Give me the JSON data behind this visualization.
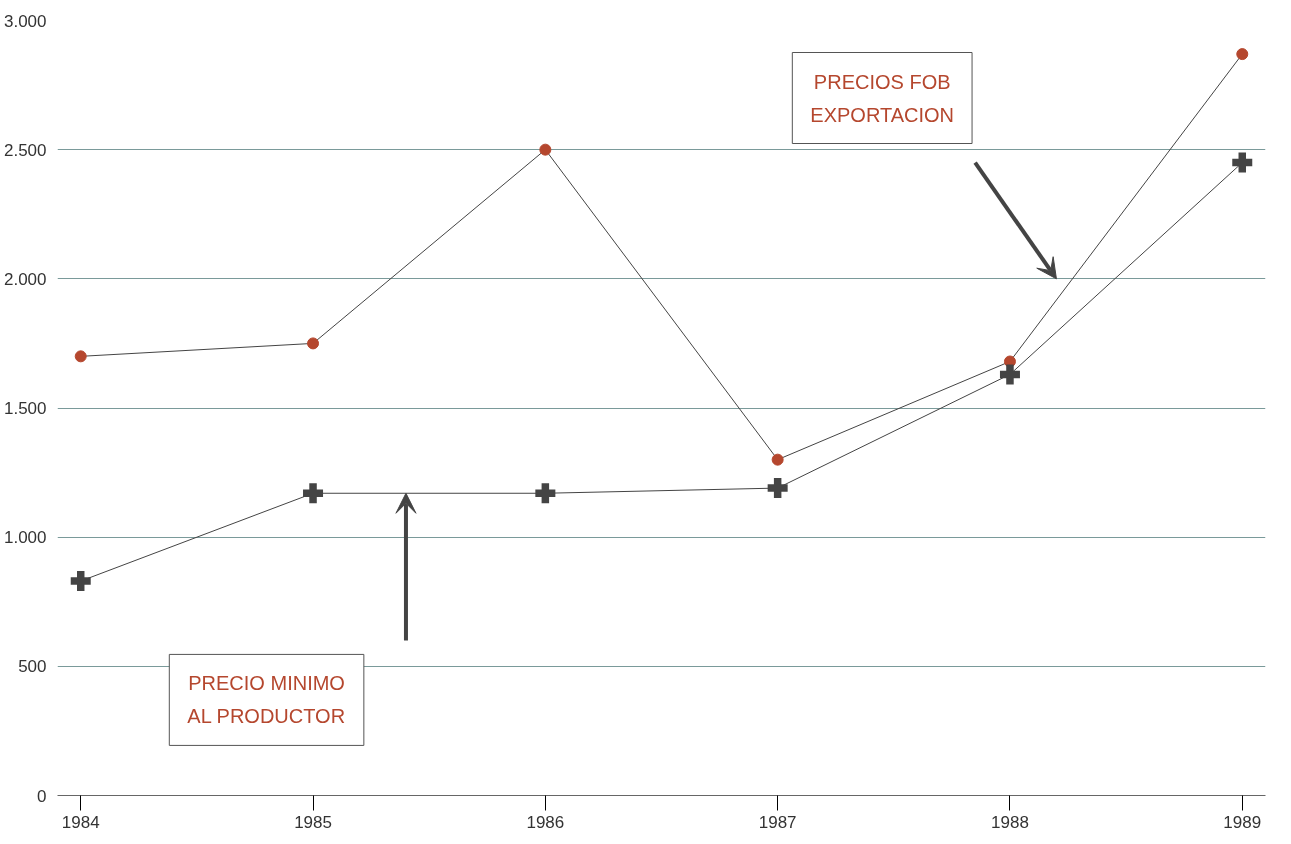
{
  "chart_data": {
    "type": "line",
    "x": [
      1984,
      1985,
      1986,
      1987,
      1988,
      1989
    ],
    "series": [
      {
        "color": "#b5472e",
        "marker": "circle",
        "values": [
          1700,
          1750,
          2500,
          1300,
          1680,
          2870
        ]
      },
      {
        "color": "#444444",
        "marker": "cross",
        "values": [
          830,
          1170,
          1170,
          1190,
          1630,
          2450
        ]
      }
    ],
    "xlim": [
      1983.9,
      1989.1
    ],
    "xticks": [
      1984,
      1985,
      1986,
      1987,
      1988,
      1989
    ],
    "ylim": [
      0,
      3000
    ],
    "yticks": [
      {
        "value": 0,
        "label": "0"
      },
      {
        "value": 500,
        "label": "500"
      },
      {
        "value": 1000,
        "label": "1.000"
      },
      {
        "value": 1500,
        "label": "1.500"
      },
      {
        "value": 2000,
        "label": "2.000"
      },
      {
        "value": 2500,
        "label": "2.500"
      },
      {
        "value": 3000,
        "label": "3.000"
      }
    ],
    "grid": "y",
    "annotations": [
      "PRECIOS FOB\nEXPORTACION",
      "PRECIO MINIMO\nAL PRODUCTOR"
    ]
  }
}
